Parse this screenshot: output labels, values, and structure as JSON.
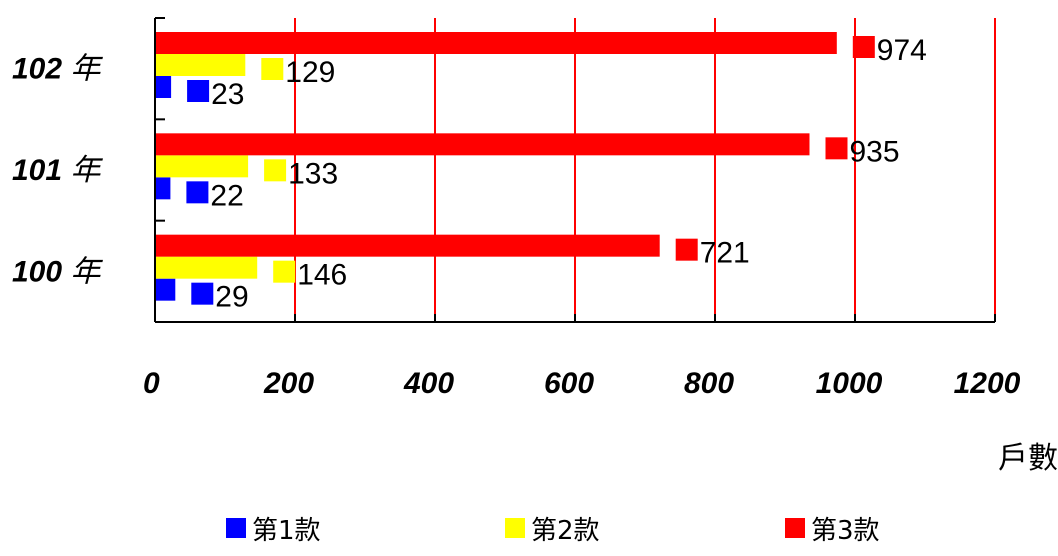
{
  "chart_data": {
    "type": "bar",
    "orientation": "horizontal",
    "categories": [
      "100年",
      "101年",
      "102年"
    ],
    "series": [
      {
        "name": "第1款",
        "values": [
          29,
          22,
          23
        ],
        "color": "#0000FF"
      },
      {
        "name": "第2款",
        "values": [
          146,
          133,
          129
        ],
        "color": "#FFFF00"
      },
      {
        "name": "第3款",
        "values": [
          721,
          935,
          974
        ],
        "color": "#FF0000"
      }
    ],
    "xlim": [
      0,
      1200
    ],
    "xticks": [
      "0",
      "200",
      "400",
      "600",
      "800",
      "1000",
      "1200"
    ],
    "xlabel": "戶數",
    "gridline_color": "#FF0000",
    "data_labels": true,
    "legend_position": "bottom"
  },
  "category_labels": [
    {
      "num": "100",
      "suffix": "年"
    },
    {
      "num": "101",
      "suffix": "年"
    },
    {
      "num": "102",
      "suffix": "年"
    }
  ]
}
